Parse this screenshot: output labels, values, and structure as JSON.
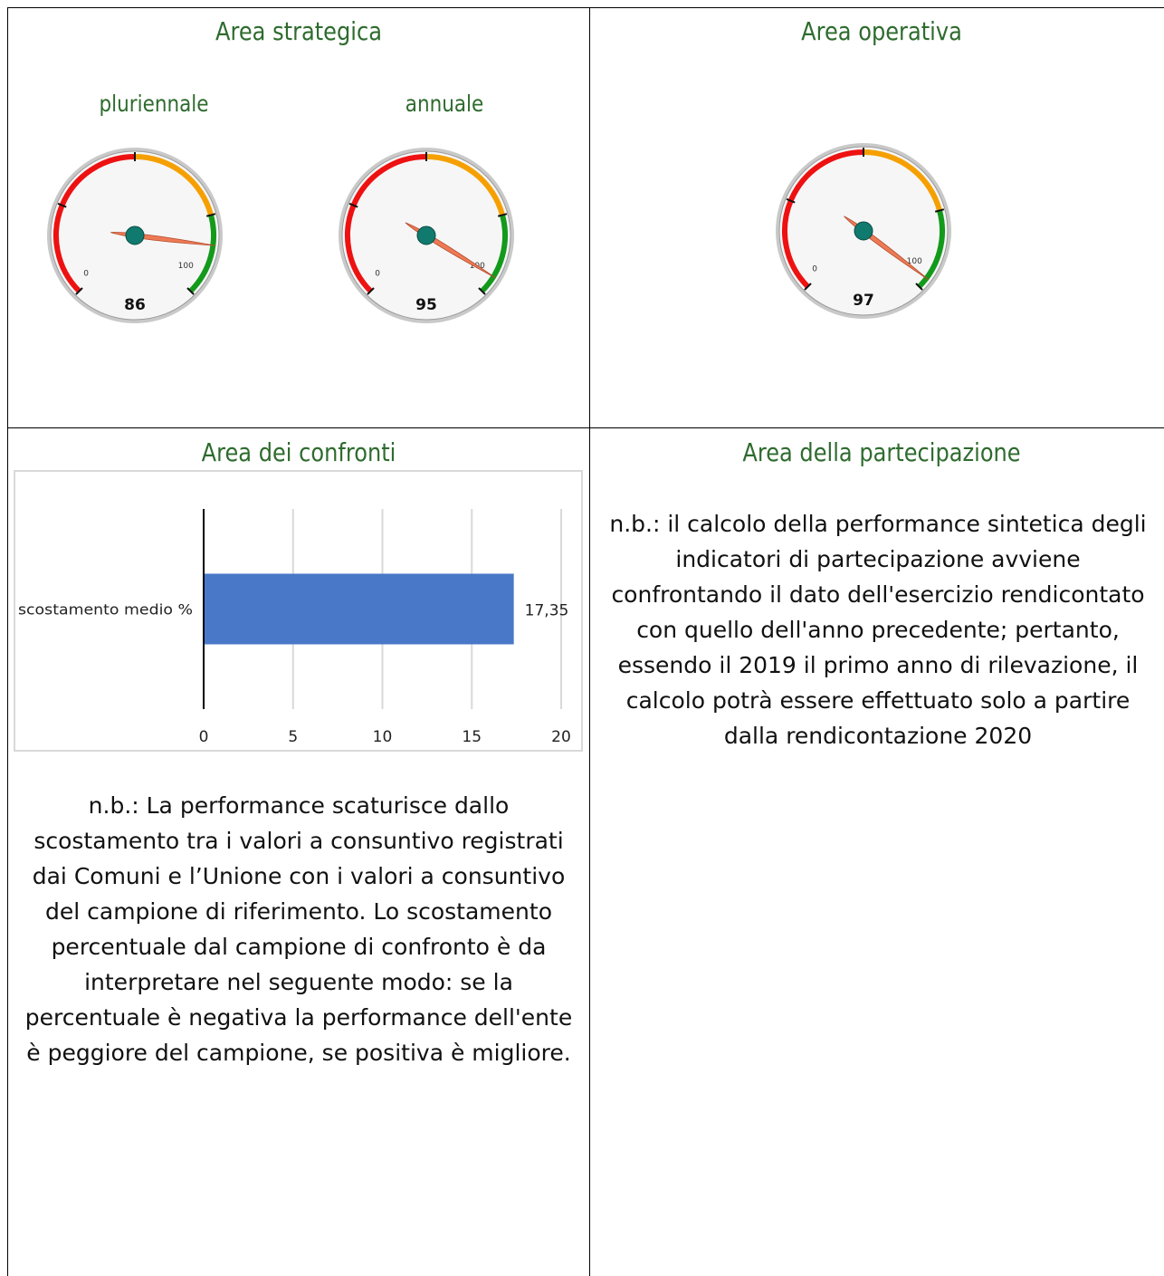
{
  "sections": {
    "strategica": {
      "title": "Area strategica",
      "gauges": [
        {
          "label": "pluriennale",
          "value": 86,
          "value_text": "86",
          "min_text": "0",
          "max_text": "100"
        },
        {
          "label": "annuale",
          "value": 95,
          "value_text": "95",
          "min_text": "0",
          "max_text": "100"
        }
      ]
    },
    "operativa": {
      "title": "Area operativa",
      "gauge": {
        "value": 97,
        "value_text": "97",
        "min_text": "0",
        "max_text": "100"
      }
    },
    "confronti": {
      "title": "Area dei confronti",
      "note_lines": [
        "n.b.: La performance scaturisce dallo",
        "scostamento tra i valori a consuntivo registrati",
        "dai Comuni e l’Unione con i valori a consuntivo",
        "del campione di riferimento. Lo scostamento",
        "percentuale dal campione di confronto è da",
        "interpretare nel seguente modo: se la",
        "percentuale è negativa la performance dell'ente",
        "è peggiore del campione, se positiva è migliore."
      ]
    },
    "partecipazione": {
      "title": "Area della partecipazione",
      "note_lines": [
        "n.b.: il calcolo della performance sintetica degli",
        "indicatori di partecipazione avviene",
        "confrontando il dato dell'esercizio rendicontato",
        "con quello dell'anno precedente; pertanto,",
        "essendo il 2019 il primo anno di rilevazione, il",
        "calcolo potrà essere effettuato solo a partire",
        "dalla rendicontazione 2020"
      ]
    }
  },
  "gauge_colors": {
    "red": "#ee1111",
    "orange": "#f5a000",
    "green": "#139a1b",
    "needle": "#ee7a55",
    "hub": "#117a6e"
  },
  "chart_data": {
    "type": "bar",
    "orientation": "horizontal",
    "categories": [
      "scostamento medio %"
    ],
    "values": [
      17.35
    ],
    "value_labels": [
      "17,35"
    ],
    "xlim": [
      0,
      20
    ],
    "xticks": [
      "0",
      "5",
      "10",
      "15",
      "20"
    ],
    "bar_color": "#4a78c8",
    "grid": true
  }
}
